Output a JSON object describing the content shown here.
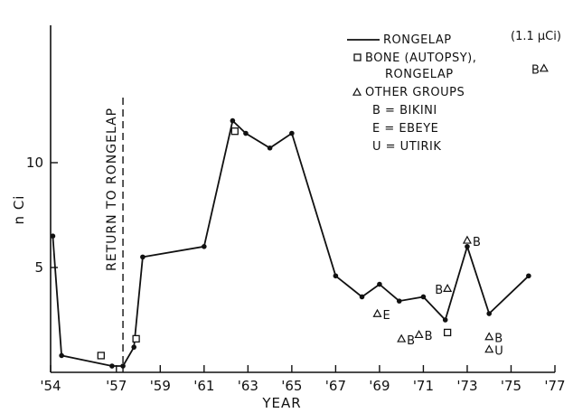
{
  "chart_data": {
    "type": "line",
    "title": "",
    "xlabel": "YEAR",
    "ylabel": "n Ci",
    "xlim": [
      1954,
      1977
    ],
    "ylim": [
      0,
      14.5
    ],
    "x_ticks": [
      "'54",
      "'57",
      "'59",
      "'61",
      "'63",
      "'65",
      "'67",
      "'69",
      "'71",
      "'73",
      "'75",
      "'77"
    ],
    "x_tick_values": [
      1954,
      1957,
      1959,
      1961,
      1963,
      1965,
      1967,
      1969,
      1971,
      1973,
      1975,
      1977
    ],
    "y_ticks": [
      "5",
      "10"
    ],
    "y_tick_values": [
      5,
      10
    ],
    "grid": false,
    "legend_position": "top-right",
    "legend": [
      {
        "marker": "line",
        "label": "RONGELAP"
      },
      {
        "marker": "square",
        "label": "BONE (AUTOPSY),"
      },
      {
        "marker": "none",
        "label": "RONGELAP"
      },
      {
        "marker": "triangle",
        "label": "OTHER GROUPS"
      },
      {
        "marker": "none",
        "label": "B = BIKINI"
      },
      {
        "marker": "none",
        "label": "E = EBEYE"
      },
      {
        "marker": "none",
        "label": "U = UTIRIK"
      }
    ],
    "vertical_marker": {
      "x": 1957.3,
      "label": "RETURN TO RONGELAP"
    },
    "series": [
      {
        "name": "RONGELAP",
        "marker": "dot",
        "points": [
          [
            1954.1,
            6.5
          ],
          [
            1954.5,
            0.8
          ],
          [
            1956.8,
            0.3
          ],
          [
            1957.3,
            0.3
          ],
          [
            1957.8,
            1.2
          ],
          [
            1958.2,
            5.5
          ],
          [
            1961.0,
            6.0
          ],
          [
            1962.3,
            12.0
          ],
          [
            1962.9,
            11.4
          ],
          [
            1964.0,
            10.7
          ],
          [
            1965.0,
            11.4
          ],
          [
            1967.0,
            4.6
          ],
          [
            1968.2,
            3.6
          ],
          [
            1969.0,
            4.2
          ],
          [
            1969.9,
            3.4
          ],
          [
            1971.0,
            3.6
          ],
          [
            1972.0,
            2.5
          ],
          [
            1973.0,
            6.0
          ],
          [
            1974.0,
            2.8
          ],
          [
            1975.8,
            4.6
          ]
        ]
      }
    ],
    "bone_points": [
      [
        1956.3,
        0.8
      ],
      [
        1957.9,
        1.6
      ],
      [
        1962.4,
        11.5
      ],
      [
        1972.1,
        1.9
      ]
    ],
    "other_groups": [
      {
        "x": 1968.9,
        "y": 2.8,
        "label": "E"
      },
      {
        "x": 1970.0,
        "y": 1.6,
        "label": "B"
      },
      {
        "x": 1970.8,
        "y": 1.8,
        "label": "B"
      },
      {
        "x": 1972.1,
        "y": 4.0,
        "label": "B"
      },
      {
        "x": 1973.0,
        "y": 6.3,
        "label": "B"
      },
      {
        "x": 1974.0,
        "y": 1.7,
        "label": "B"
      },
      {
        "x": 1974.0,
        "y": 1.1,
        "label": "U"
      },
      {
        "x": 1976.5,
        "y": 14.5,
        "label": "B"
      }
    ],
    "offscale_note": "(1.1 μCi)"
  }
}
